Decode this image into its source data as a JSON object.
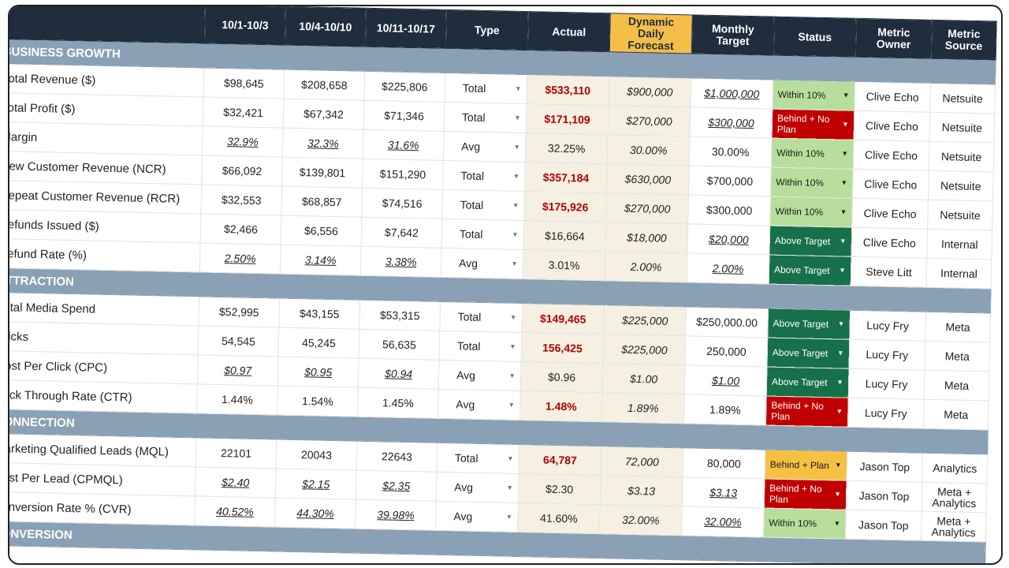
{
  "header": {
    "columns": [
      "10/1-10/3",
      "10/4-10/10",
      "10/11-10/17",
      "Type",
      "Actual",
      "Dynamic Daily Forecast",
      "Monthly Target",
      "Status",
      "Metric Owner",
      "Metric Source"
    ]
  },
  "sections": [
    {
      "title": "BUSINESS GROWTH",
      "rows": [
        {
          "metric": "Total Revenue ($)",
          "weeks": [
            "$98,645",
            "$208,658",
            "$225,806"
          ],
          "type": "Total",
          "actual": "$533,110",
          "forecast": "$900,000",
          "target": "$1,000,000",
          "status": {
            "label": "Within 10%",
            "color": "#b7de9c"
          },
          "owner": "Clive Echo",
          "source": "Netsuite"
        },
        {
          "metric": "Total Profit ($)",
          "weeks": [
            "$32,421",
            "$67,342",
            "$71,346"
          ],
          "type": "Total",
          "actual": "$171,109",
          "forecast": "$270,000",
          "target": "$300,000",
          "status": {
            "label": "Behind + No Plan",
            "color": "#c00000"
          },
          "owner": "Clive Echo",
          "source": "Netsuite"
        },
        {
          "metric": "Margin",
          "weeks": [
            "32.9%",
            "32.3%",
            "31.6%"
          ],
          "type": "Avg",
          "actual": "32.25%",
          "forecast": "30.00%",
          "target": "30.00%",
          "status": {
            "label": "Within 10%",
            "color": "#b7de9c"
          },
          "owner": "Clive Echo",
          "source": "Netsuite"
        },
        {
          "metric": "New Customer Revenue (NCR)",
          "weeks": [
            "$66,092",
            "$139,801",
            "$151,290"
          ],
          "type": "Total",
          "actual": "$357,184",
          "forecast": "$630,000",
          "target": "$700,000",
          "status": {
            "label": "Within 10%",
            "color": "#b7de9c"
          },
          "owner": "Clive Echo",
          "source": "Netsuite"
        },
        {
          "metric": "Repeat Customer Revenue (RCR)",
          "weeks": [
            "$32,553",
            "$68,857",
            "$74,516"
          ],
          "type": "Total",
          "actual": "$175,926",
          "forecast": "$270,000",
          "target": "$300,000",
          "status": {
            "label": "Within 10%",
            "color": "#b7de9c"
          },
          "owner": "Clive Echo",
          "source": "Netsuite"
        },
        {
          "metric": "Refunds Issued ($)",
          "weeks": [
            "$2,466",
            "$6,556",
            "$7,642"
          ],
          "type": "Total",
          "actual": "$16,664",
          "forecast": "$18,000",
          "target": "$20,000",
          "status": {
            "label": "Above Target",
            "color": "#16704a"
          },
          "owner": "Clive Echo",
          "source": "Internal"
        },
        {
          "metric": "Refund Rate (%)",
          "weeks": [
            "2.50%",
            "3.14%",
            "3.38%"
          ],
          "type": "Avg",
          "actual": "3.01%",
          "forecast": "2.00%",
          "target": "2.00%",
          "status": {
            "label": "Above Target",
            "color": "#16704a"
          },
          "owner": "Steve Litt",
          "source": "Internal"
        }
      ]
    },
    {
      "title": "ATTRACTION",
      "rows": [
        {
          "metric": "Total Media Spend",
          "weeks": [
            "$52,995",
            "$43,155",
            "$53,315"
          ],
          "type": "Total",
          "actual": "$149,465",
          "forecast": "$225,000",
          "target": "$250,000.00",
          "status": {
            "label": "Above Target",
            "color": "#16704a"
          },
          "owner": "Lucy Fry",
          "source": "Meta"
        },
        {
          "metric": "Clicks",
          "weeks": [
            "54,545",
            "45,245",
            "56,635"
          ],
          "type": "Total",
          "actual": "156,425",
          "forecast": "$225,000",
          "target": "250,000",
          "status": {
            "label": "Above Target",
            "color": "#16704a"
          },
          "owner": "Lucy Fry",
          "source": "Meta"
        },
        {
          "metric": "Cost Per Click (CPC)",
          "weeks": [
            "$0.97",
            "$0.95",
            "$0.94"
          ],
          "type": "Avg",
          "actual": "$0.96",
          "forecast": "$1.00",
          "target": "$1.00",
          "status": {
            "label": "Above Target",
            "color": "#16704a"
          },
          "owner": "Lucy Fry",
          "source": "Meta"
        },
        {
          "metric": "Click Through Rate (CTR)",
          "weeks": [
            "1.44%",
            "1.54%",
            "1.45%"
          ],
          "type": "Avg",
          "actual": "1.48%",
          "forecast": "1.89%",
          "target": "1.89%",
          "status": {
            "label": "Behind + No Plan",
            "color": "#c00000"
          },
          "owner": "Lucy Fry",
          "source": "Meta"
        }
      ]
    },
    {
      "title": "CONNECTION",
      "rows": [
        {
          "metric": "Marketing Qualified Leads (MQL)",
          "weeks": [
            "22101",
            "20043",
            "22643"
          ],
          "type": "Total",
          "actual": "64,787",
          "forecast": "72,000",
          "target": "80,000",
          "status": {
            "label": "Behind + Plan",
            "color": "#f6c143"
          },
          "owner": "Jason Top",
          "source": "Analytics"
        },
        {
          "metric": "Cost Per Lead (CPMQL)",
          "weeks": [
            "$2.40",
            "$2.15",
            "$2.35"
          ],
          "type": "Avg",
          "actual": "$2.30",
          "forecast": "$3.13",
          "target": "$3.13",
          "status": {
            "label": "Behind + No Plan",
            "color": "#c00000"
          },
          "owner": "Jason Top",
          "source": "Meta + Analytics"
        },
        {
          "metric": "Conversion Rate % (CVR)",
          "weeks": [
            "40.52%",
            "44.30%",
            "39.98%"
          ],
          "type": "Avg",
          "actual": "41.60%",
          "forecast": "32.00%",
          "target": "32.00%",
          "status": {
            "label": "Within 10%",
            "color": "#b7de9c"
          },
          "owner": "Jason Top",
          "source": "Meta + Analytics"
        }
      ]
    },
    {
      "title": "CONVERSION",
      "rows": []
    }
  ]
}
